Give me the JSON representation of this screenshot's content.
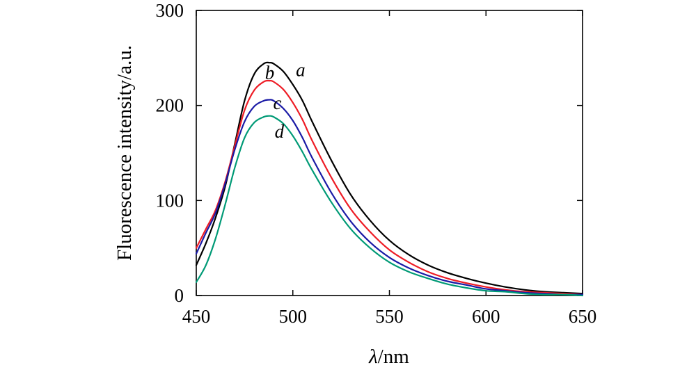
{
  "chart_data": {
    "type": "line",
    "title": "",
    "xlabel": {
      "var": "λ",
      "unit": "/nm"
    },
    "ylabel": "Fluorescence intensity/a.u.",
    "xlim": [
      450,
      650
    ],
    "ylim": [
      0,
      300
    ],
    "xticks": [
      450,
      500,
      550,
      600,
      650
    ],
    "yticks": [
      0,
      100,
      200,
      300
    ],
    "grid": false,
    "legend": "none",
    "x": [
      450,
      455,
      460,
      465,
      470,
      475,
      480,
      485,
      488,
      490,
      495,
      500,
      505,
      510,
      520,
      530,
      540,
      550,
      560,
      570,
      580,
      590,
      600,
      610,
      620,
      630,
      640,
      650
    ],
    "series": [
      {
        "label": "a",
        "color": "#000000",
        "values": [
          32,
          55,
          82,
          115,
          160,
          205,
          233,
          244,
          245,
          244,
          236,
          222,
          205,
          183,
          142,
          106,
          79,
          58,
          43,
          32,
          24,
          18,
          13,
          9,
          6,
          4,
          3,
          2
        ]
      },
      {
        "label": "b",
        "color": "#ee1c25",
        "values": [
          50,
          70,
          90,
          120,
          158,
          195,
          216,
          225,
          226,
          225,
          217,
          203,
          185,
          163,
          124,
          91,
          67,
          48,
          35,
          25,
          18,
          13,
          9,
          6,
          4,
          3,
          2,
          1
        ]
      },
      {
        "label": "c",
        "color": "#1a1aa6",
        "values": [
          44,
          66,
          87,
          118,
          154,
          183,
          199,
          205,
          206,
          205,
          197,
          184,
          166,
          145,
          108,
          78,
          56,
          40,
          29,
          21,
          15,
          11,
          7,
          5,
          3,
          2,
          1,
          1
        ]
      },
      {
        "label": "d",
        "color": "#009a76",
        "values": [
          14,
          32,
          60,
          96,
          135,
          166,
          182,
          188,
          189,
          188,
          181,
          168,
          151,
          132,
          98,
          70,
          50,
          35,
          25,
          18,
          12,
          8,
          5,
          4,
          2,
          1,
          1,
          0
        ]
      }
    ],
    "curve_labels": [
      {
        "text": "a",
        "x": 504,
        "y": 231
      },
      {
        "text": "b",
        "x": 488,
        "y": 228
      },
      {
        "text": "c",
        "x": 492,
        "y": 196
      },
      {
        "text": "d",
        "x": 493,
        "y": 166
      }
    ]
  }
}
